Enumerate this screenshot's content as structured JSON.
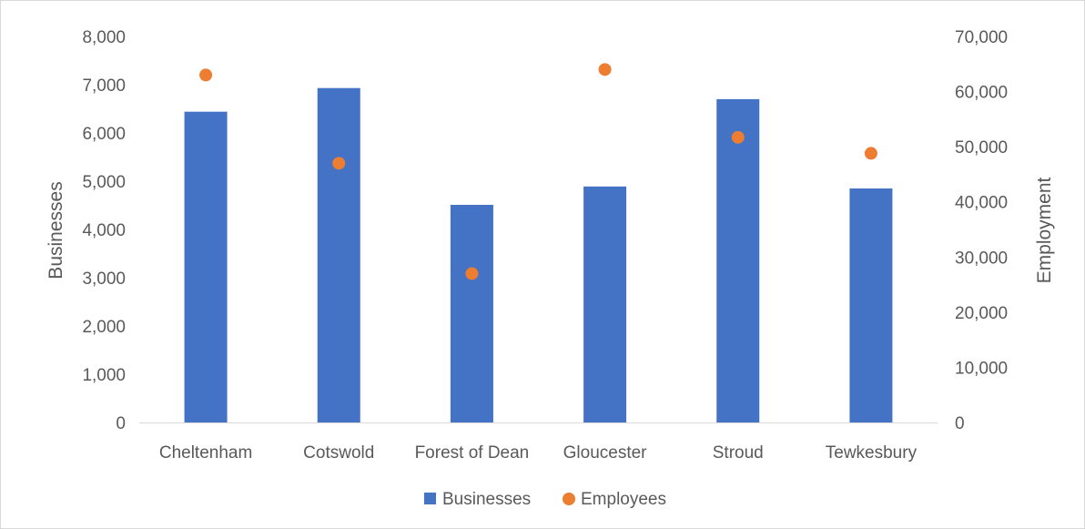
{
  "chart_data": {
    "type": "bar",
    "categories": [
      "Cheltenham",
      "Cotswold",
      "Forest of Dean",
      "Gloucester",
      "Stroud",
      "Tewkesbury"
    ],
    "series": [
      {
        "name": "Businesses",
        "kind": "bar",
        "axis": "left",
        "color": "#4472c4",
        "values": [
          6440,
          6930,
          4510,
          4890,
          6700,
          4850
        ]
      },
      {
        "name": "Employees",
        "kind": "scatter",
        "axis": "right",
        "color": "#ed7d31",
        "values": [
          63000,
          47000,
          27000,
          64000,
          51700,
          48800
        ]
      }
    ],
    "ylabel": "Businesses",
    "y2label": "Employment",
    "ylim": [
      0,
      8000
    ],
    "y2lim": [
      0,
      70000
    ],
    "yticks": [
      "0",
      "1,000",
      "2,000",
      "3,000",
      "4,000",
      "5,000",
      "6,000",
      "7,000",
      "8,000"
    ],
    "y2ticks": [
      "0",
      "10,000",
      "20,000",
      "30,000",
      "40,000",
      "50,000",
      "60,000",
      "70,000"
    ],
    "grid": false,
    "legend": "bottom-center"
  }
}
